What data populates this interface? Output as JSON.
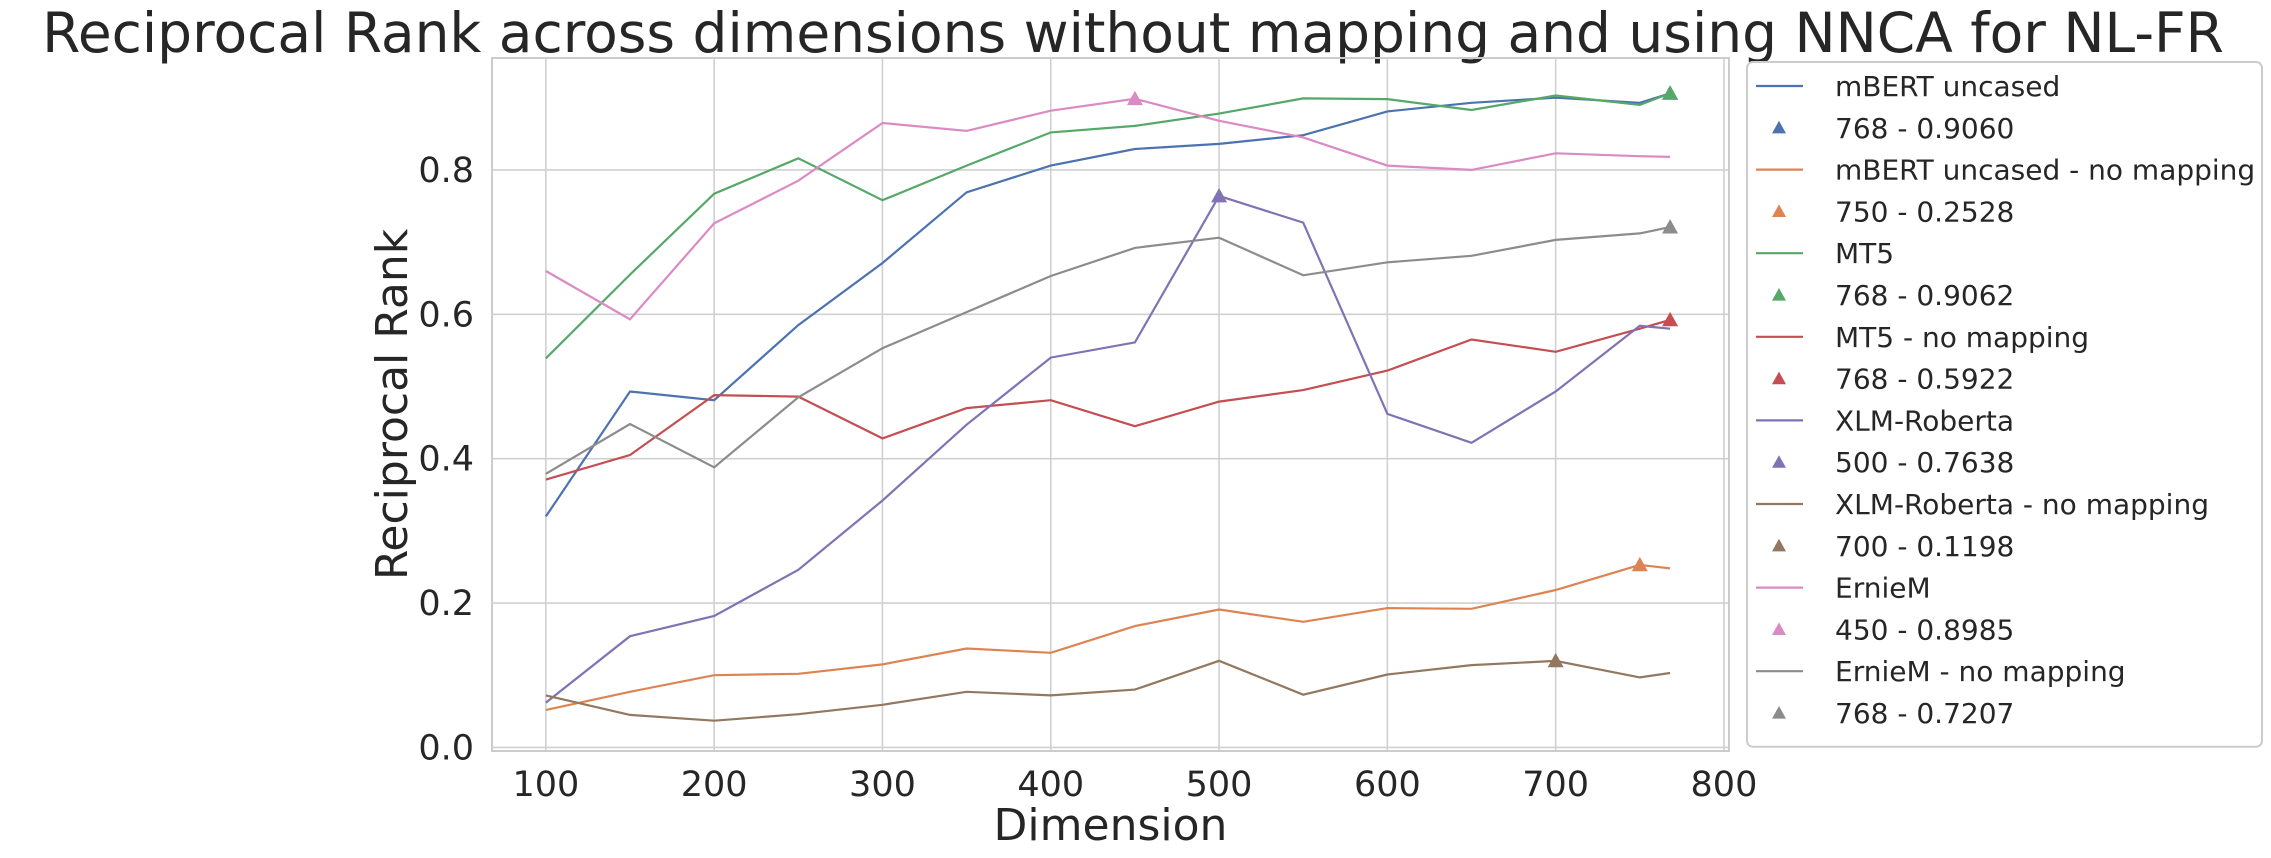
{
  "chart_data": {
    "type": "line",
    "title": "Reciprocal Rank across dimensions without mapping and using NNCA for NL-FR",
    "xlabel": "Dimension",
    "ylabel": "Reciprocal Rank",
    "xlim": [
      68,
      803
    ],
    "ylim": [
      -0.005,
      0.955
    ],
    "xticks": [
      100,
      200,
      300,
      400,
      500,
      600,
      700,
      800
    ],
    "yticks": [
      0.0,
      0.2,
      0.4,
      0.6,
      0.8
    ],
    "ytick_labels": [
      "0.0",
      "0.2",
      "0.4",
      "0.6",
      "0.8"
    ],
    "grid": true,
    "legend_position": "outside-right",
    "x": [
      100,
      150,
      200,
      250,
      300,
      350,
      400,
      450,
      500,
      550,
      600,
      650,
      700,
      750,
      768
    ],
    "series": [
      {
        "name": "mBERT uncased",
        "color": "#4c72b0",
        "values": [
          0.32,
          0.493,
          0.481,
          0.585,
          0.671,
          0.769,
          0.806,
          0.829,
          0.836,
          0.848,
          0.881,
          0.893,
          0.9,
          0.893,
          0.906
        ],
        "marker": {
          "label": "768 - 0.9060",
          "x": 768,
          "y": 0.906
        }
      },
      {
        "name": "mBERT uncased - no mapping",
        "color": "#dd8452",
        "values": [
          0.052,
          0.077,
          0.1,
          0.102,
          0.115,
          0.137,
          0.131,
          0.168,
          0.191,
          0.174,
          0.193,
          0.192,
          0.218,
          0.2528,
          0.248
        ],
        "marker": {
          "label": "750 - 0.2528",
          "x": 750,
          "y": 0.2528
        }
      },
      {
        "name": "MT5",
        "color": "#55a868",
        "values": [
          0.539,
          0.655,
          0.767,
          0.816,
          0.758,
          0.806,
          0.852,
          0.861,
          0.878,
          0.899,
          0.898,
          0.883,
          0.903,
          0.89,
          0.9062
        ],
        "marker": {
          "label": "768 - 0.9062",
          "x": 768,
          "y": 0.9062
        }
      },
      {
        "name": "MT5 - no mapping",
        "color": "#c44e52",
        "values": [
          0.371,
          0.405,
          0.488,
          0.486,
          0.428,
          0.47,
          0.481,
          0.445,
          0.479,
          0.495,
          0.522,
          0.565,
          0.548,
          0.58,
          0.5922
        ],
        "marker": {
          "label": "768 - 0.5922",
          "x": 768,
          "y": 0.5922
        }
      },
      {
        "name": "XLM-Roberta",
        "color": "#8172b3",
        "values": [
          0.062,
          0.154,
          0.182,
          0.246,
          0.342,
          0.447,
          0.54,
          0.561,
          0.7638,
          0.727,
          0.462,
          0.422,
          0.493,
          0.584,
          0.58
        ],
        "marker": {
          "label": "500 - 0.7638",
          "x": 500,
          "y": 0.7638
        }
      },
      {
        "name": "XLM-Roberta - no mapping",
        "color": "#937860",
        "values": [
          0.072,
          0.045,
          0.037,
          0.046,
          0.059,
          0.077,
          0.072,
          0.08,
          0.12,
          0.073,
          0.101,
          0.114,
          0.1198,
          0.097,
          0.103
        ],
        "marker": {
          "label": "700 - 0.1198",
          "x": 700,
          "y": 0.1198
        }
      },
      {
        "name": "ErnieM",
        "color": "#da8bc3",
        "values": [
          0.66,
          0.593,
          0.726,
          0.785,
          0.865,
          0.854,
          0.882,
          0.8985,
          0.868,
          0.845,
          0.806,
          0.8,
          0.823,
          0.819,
          0.818
        ],
        "marker": {
          "label": "450 - 0.8985",
          "x": 450,
          "y": 0.8985
        }
      },
      {
        "name": "ErnieM - no mapping",
        "color": "#8c8c8c",
        "values": [
          0.379,
          0.448,
          0.388,
          0.485,
          0.553,
          0.603,
          0.653,
          0.692,
          0.706,
          0.654,
          0.672,
          0.681,
          0.703,
          0.712,
          0.7207
        ],
        "marker": {
          "label": "768 - 0.7207",
          "x": 768,
          "y": 0.7207
        }
      }
    ]
  }
}
